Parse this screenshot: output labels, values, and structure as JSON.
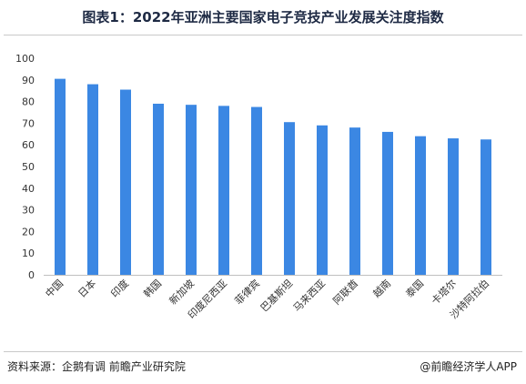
{
  "header": {
    "title": "图表1：2022年亚洲主要国家电子竞技产业发展关注度指数"
  },
  "footer": {
    "source": "资料来源：企鹅有调 前瞻产业研究院",
    "brand": "@前瞻经济学人APP"
  },
  "colors": {
    "bar": "#3b87e3",
    "axis": "#bfbfbf",
    "tick_text": "#333333"
  },
  "chart_data": {
    "type": "bar",
    "title": "图表1：2022年亚洲主要国家电子竞技产业发展关注度指数",
    "xlabel": "",
    "ylabel": "",
    "categories": [
      "中国",
      "日本",
      "印度",
      "韩国",
      "新加坡",
      "印度尼西亚",
      "菲律宾",
      "巴基斯坦",
      "马来西亚",
      "阿联酋",
      "越南",
      "泰国",
      "卡塔尔",
      "沙特阿拉伯"
    ],
    "values": [
      90.5,
      88,
      85.5,
      79,
      78.5,
      78,
      77.5,
      70.5,
      69,
      68,
      66,
      64,
      63,
      62.5
    ],
    "ylim": [
      0,
      100
    ],
    "yticks": [
      0,
      10,
      20,
      30,
      40,
      50,
      60,
      70,
      80,
      90,
      100
    ],
    "grid": false,
    "legend": "none"
  }
}
